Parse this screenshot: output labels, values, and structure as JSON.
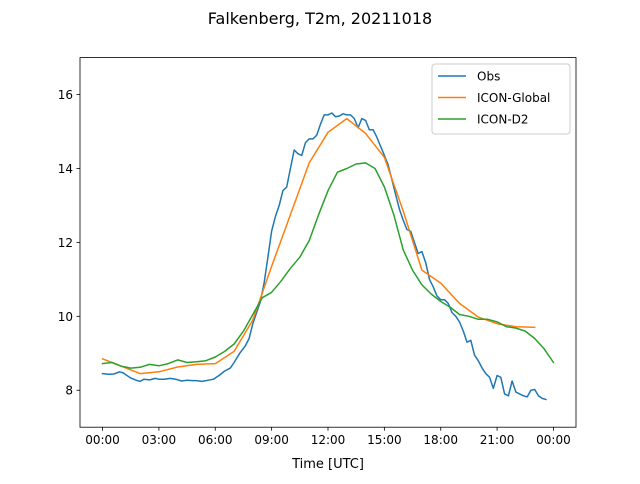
{
  "chart_data": {
    "type": "line",
    "title": "Falkenberg, T2m, 20211018",
    "xlabel": "Time [UTC]",
    "ylabel": "",
    "xlim": [
      -1.2,
      25.2
    ],
    "ylim": [
      7.0,
      17.0
    ],
    "grid": false,
    "legend_position": "top-right",
    "x_ticks": [
      {
        "value": 0,
        "label": "00:00"
      },
      {
        "value": 3,
        "label": "03:00"
      },
      {
        "value": 6,
        "label": "06:00"
      },
      {
        "value": 9,
        "label": "09:00"
      },
      {
        "value": 12,
        "label": "12:00"
      },
      {
        "value": 15,
        "label": "15:00"
      },
      {
        "value": 18,
        "label": "18:00"
      },
      {
        "value": 21,
        "label": "21:00"
      },
      {
        "value": 24,
        "label": "00:00"
      }
    ],
    "y_ticks": [
      {
        "value": 8,
        "label": "8"
      },
      {
        "value": 10,
        "label": "10"
      },
      {
        "value": 12,
        "label": "12"
      },
      {
        "value": 14,
        "label": "14"
      },
      {
        "value": 16,
        "label": "16"
      }
    ],
    "series": [
      {
        "name": "Obs",
        "color": "#1f77b4",
        "points": [
          [
            0.0,
            8.45
          ],
          [
            0.3,
            8.43
          ],
          [
            0.6,
            8.44
          ],
          [
            0.9,
            8.5
          ],
          [
            1.1,
            8.47
          ],
          [
            1.3,
            8.4
          ],
          [
            1.5,
            8.33
          ],
          [
            1.8,
            8.27
          ],
          [
            2.0,
            8.24
          ],
          [
            2.2,
            8.3
          ],
          [
            2.5,
            8.28
          ],
          [
            2.8,
            8.32
          ],
          [
            3.0,
            8.3
          ],
          [
            3.3,
            8.3
          ],
          [
            3.6,
            8.32
          ],
          [
            3.9,
            8.3
          ],
          [
            4.2,
            8.25
          ],
          [
            4.5,
            8.27
          ],
          [
            4.8,
            8.26
          ],
          [
            5.0,
            8.26
          ],
          [
            5.3,
            8.24
          ],
          [
            5.6,
            8.27
          ],
          [
            5.9,
            8.3
          ],
          [
            6.2,
            8.4
          ],
          [
            6.5,
            8.52
          ],
          [
            6.8,
            8.6
          ],
          [
            7.0,
            8.75
          ],
          [
            7.3,
            9.0
          ],
          [
            7.6,
            9.2
          ],
          [
            7.8,
            9.4
          ],
          [
            8.0,
            9.8
          ],
          [
            8.2,
            10.1
          ],
          [
            8.4,
            10.4
          ],
          [
            8.6,
            10.9
          ],
          [
            8.8,
            11.6
          ],
          [
            9.0,
            12.3
          ],
          [
            9.2,
            12.7
          ],
          [
            9.4,
            13.0
          ],
          [
            9.6,
            13.4
          ],
          [
            9.8,
            13.5
          ],
          [
            10.0,
            14.0
          ],
          [
            10.2,
            14.5
          ],
          [
            10.4,
            14.4
          ],
          [
            10.6,
            14.35
          ],
          [
            10.8,
            14.7
          ],
          [
            11.0,
            14.8
          ],
          [
            11.2,
            14.8
          ],
          [
            11.4,
            14.9
          ],
          [
            11.6,
            15.2
          ],
          [
            11.8,
            15.45
          ],
          [
            12.0,
            15.45
          ],
          [
            12.2,
            15.5
          ],
          [
            12.4,
            15.4
          ],
          [
            12.6,
            15.42
          ],
          [
            12.8,
            15.48
          ],
          [
            13.0,
            15.45
          ],
          [
            13.2,
            15.45
          ],
          [
            13.4,
            15.35
          ],
          [
            13.6,
            15.1
          ],
          [
            13.8,
            15.35
          ],
          [
            14.0,
            15.3
          ],
          [
            14.2,
            15.05
          ],
          [
            14.4,
            15.05
          ],
          [
            14.6,
            14.85
          ],
          [
            14.8,
            14.6
          ],
          [
            15.0,
            14.35
          ],
          [
            15.2,
            14.1
          ],
          [
            15.4,
            13.7
          ],
          [
            15.6,
            13.3
          ],
          [
            15.8,
            12.9
          ],
          [
            16.0,
            12.6
          ],
          [
            16.2,
            12.35
          ],
          [
            16.4,
            12.3
          ],
          [
            16.6,
            12.0
          ],
          [
            16.8,
            11.7
          ],
          [
            17.0,
            11.75
          ],
          [
            17.2,
            11.45
          ],
          [
            17.4,
            11.0
          ],
          [
            17.6,
            10.8
          ],
          [
            17.8,
            10.55
          ],
          [
            18.0,
            10.45
          ],
          [
            18.2,
            10.45
          ],
          [
            18.4,
            10.35
          ],
          [
            18.6,
            10.1
          ],
          [
            18.8,
            10.0
          ],
          [
            19.0,
            9.85
          ],
          [
            19.2,
            9.6
          ],
          [
            19.4,
            9.3
          ],
          [
            19.6,
            9.35
          ],
          [
            19.8,
            8.95
          ],
          [
            20.0,
            8.8
          ],
          [
            20.2,
            8.6
          ],
          [
            20.4,
            8.45
          ],
          [
            20.6,
            8.35
          ],
          [
            20.8,
            8.05
          ],
          [
            21.0,
            8.4
          ],
          [
            21.2,
            8.35
          ],
          [
            21.4,
            7.9
          ],
          [
            21.6,
            7.85
          ],
          [
            21.8,
            8.25
          ],
          [
            22.0,
            7.95
          ],
          [
            22.2,
            7.9
          ],
          [
            22.4,
            7.85
          ],
          [
            22.6,
            7.82
          ],
          [
            22.8,
            8.0
          ],
          [
            23.0,
            8.02
          ],
          [
            23.2,
            7.85
          ],
          [
            23.4,
            7.78
          ],
          [
            23.6,
            7.75
          ]
        ]
      },
      {
        "name": "ICON-Global",
        "color": "#ff7f0e",
        "points": [
          [
            0.0,
            8.85
          ],
          [
            1.0,
            8.65
          ],
          [
            2.0,
            8.45
          ],
          [
            3.0,
            8.5
          ],
          [
            4.0,
            8.63
          ],
          [
            5.0,
            8.7
          ],
          [
            6.0,
            8.72
          ],
          [
            7.0,
            9.05
          ],
          [
            8.0,
            9.9
          ],
          [
            9.0,
            11.35
          ],
          [
            10.0,
            12.75
          ],
          [
            11.0,
            14.15
          ],
          [
            12.0,
            14.98
          ],
          [
            13.0,
            15.35
          ],
          [
            14.0,
            14.95
          ],
          [
            15.0,
            14.3
          ],
          [
            16.0,
            12.85
          ],
          [
            17.0,
            11.25
          ],
          [
            18.0,
            10.9
          ],
          [
            19.0,
            10.35
          ],
          [
            20.0,
            9.98
          ],
          [
            21.0,
            9.8
          ],
          [
            22.0,
            9.72
          ],
          [
            22.5,
            9.71
          ],
          [
            23.0,
            9.7
          ]
        ]
      },
      {
        "name": "ICON-D2",
        "color": "#2ca02c",
        "points": [
          [
            0.0,
            8.72
          ],
          [
            0.5,
            8.75
          ],
          [
            1.0,
            8.65
          ],
          [
            1.5,
            8.6
          ],
          [
            2.0,
            8.62
          ],
          [
            2.5,
            8.7
          ],
          [
            3.0,
            8.66
          ],
          [
            3.5,
            8.72
          ],
          [
            4.0,
            8.82
          ],
          [
            4.5,
            8.75
          ],
          [
            5.0,
            8.77
          ],
          [
            5.5,
            8.8
          ],
          [
            6.0,
            8.9
          ],
          [
            6.5,
            9.05
          ],
          [
            7.0,
            9.25
          ],
          [
            7.5,
            9.6
          ],
          [
            8.0,
            10.05
          ],
          [
            8.5,
            10.5
          ],
          [
            9.0,
            10.65
          ],
          [
            9.5,
            10.95
          ],
          [
            10.0,
            11.3
          ],
          [
            10.5,
            11.6
          ],
          [
            11.0,
            12.05
          ],
          [
            11.5,
            12.75
          ],
          [
            12.0,
            13.4
          ],
          [
            12.5,
            13.9
          ],
          [
            13.0,
            14.0
          ],
          [
            13.5,
            14.12
          ],
          [
            14.0,
            14.15
          ],
          [
            14.5,
            14.0
          ],
          [
            15.0,
            13.5
          ],
          [
            15.5,
            12.75
          ],
          [
            16.0,
            11.8
          ],
          [
            16.5,
            11.25
          ],
          [
            17.0,
            10.85
          ],
          [
            17.5,
            10.6
          ],
          [
            18.0,
            10.4
          ],
          [
            18.5,
            10.25
          ],
          [
            19.0,
            10.05
          ],
          [
            19.5,
            10.0
          ],
          [
            20.0,
            9.92
          ],
          [
            20.5,
            9.92
          ],
          [
            21.0,
            9.85
          ],
          [
            21.5,
            9.72
          ],
          [
            22.0,
            9.68
          ],
          [
            22.5,
            9.6
          ],
          [
            23.0,
            9.4
          ],
          [
            23.5,
            9.12
          ],
          [
            24.0,
            8.75
          ]
        ]
      }
    ]
  }
}
